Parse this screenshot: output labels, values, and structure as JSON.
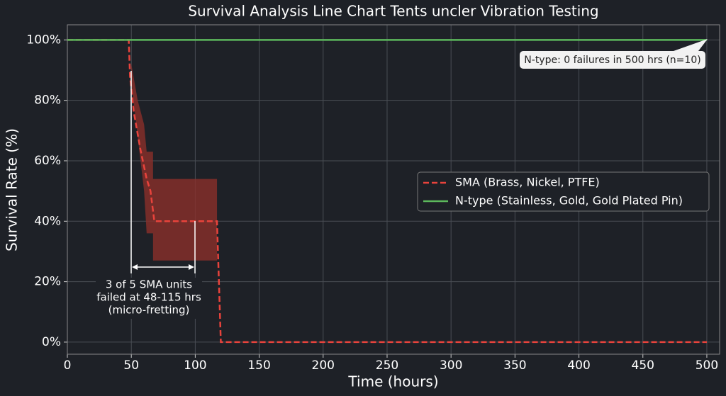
{
  "chart_data": {
    "type": "line",
    "title": "Survival Analysis Line Chart Tents uncler Vibration Testing",
    "x_label": "Time (hours)",
    "y_label": "Survival Rate (%)",
    "xlim": [
      0,
      510
    ],
    "ylim": [
      -4,
      105
    ],
    "xticks": [
      0,
      50,
      100,
      150,
      200,
      250,
      300,
      350,
      400,
      450,
      500
    ],
    "yticks": [
      {
        "value": 0,
        "label": "0%"
      },
      {
        "value": 20,
        "label": "20%"
      },
      {
        "value": 40,
        "label": "40%"
      },
      {
        "value": 60,
        "label": "60%"
      },
      {
        "value": 80,
        "label": "80%"
      },
      {
        "value": 100,
        "label": "100%"
      }
    ],
    "grid": true,
    "legend": "center right",
    "series": [
      {
        "name": "SMA (Brass, Nickel, PTFE)",
        "color": "#e8433c",
        "dashed": true,
        "x": [
          0,
          48,
          49,
          52,
          57,
          62,
          65,
          68,
          117,
          120,
          500
        ],
        "values": [
          100,
          100,
          88,
          76,
          64,
          54,
          50,
          40,
          40,
          0,
          0
        ],
        "band_color": "#8a2f2b",
        "band_x": [
          50,
          55,
          60,
          62,
          67,
          67,
          117
        ],
        "band_upper": [
          92,
          80,
          72,
          63,
          63,
          54,
          54
        ],
        "band_lower": [
          86,
          68,
          50,
          36,
          36,
          27,
          27
        ]
      },
      {
        "name": "N-type (Stainless, Gold, Gold Plated Pin)",
        "color": "#5cb85c",
        "dashed": false,
        "x": [
          0,
          500
        ],
        "values": [
          100,
          100
        ]
      }
    ],
    "annotations": [
      {
        "text": "N-type: 0 failures in 500 hrs (n=10)"
      },
      {
        "lines": [
          "3 of 5 SMA units",
          "failed at 48-115 hrs",
          "(micro-fretting)"
        ]
      }
    ]
  }
}
